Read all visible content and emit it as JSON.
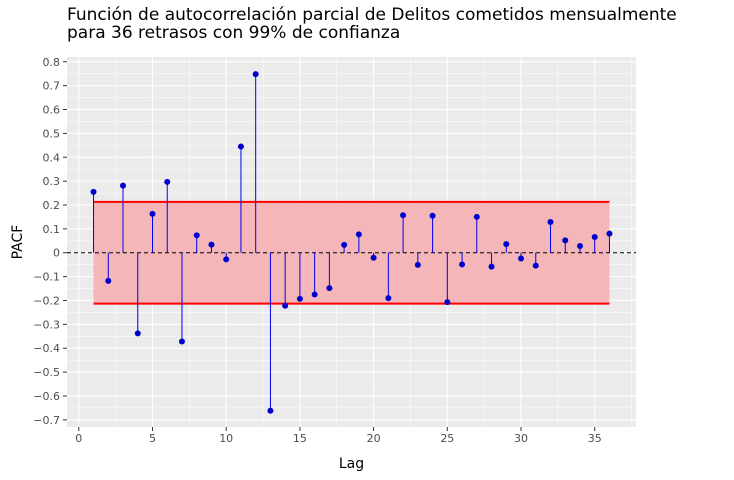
{
  "chart_data": {
    "type": "scatter",
    "title": "Función de autocorrelación parcial de Delitos cometidos mensualmente\npara 36 retrasos con 99% de confianza",
    "xlabel": "Lag",
    "ylabel": "PACF",
    "xlim": [
      -0.8,
      37.8
    ],
    "ylim": [
      -0.73,
      0.82
    ],
    "x_ticks": [
      0,
      5,
      10,
      15,
      20,
      25,
      30,
      35
    ],
    "y_ticks": [
      -0.7,
      -0.6,
      -0.5,
      -0.4,
      -0.3,
      -0.2,
      -0.1,
      0,
      0.1,
      0.2,
      0.3,
      0.4,
      0.5,
      0.6,
      0.7,
      0.8
    ],
    "grid": true,
    "confidence_band": {
      "lower": -0.213,
      "upper": 0.213,
      "x_start": 1,
      "x_end": 36
    },
    "series": [
      {
        "x": [
          1,
          2,
          3,
          4,
          5,
          6,
          7,
          8,
          9,
          10,
          11,
          12,
          13,
          14,
          15,
          16,
          17,
          18,
          19,
          20,
          21,
          22,
          23,
          24,
          25,
          26,
          27,
          28,
          29,
          30,
          31,
          32,
          33,
          34,
          35,
          36
        ],
        "y": [
          0.255,
          -0.118,
          0.281,
          -0.338,
          0.163,
          0.297,
          -0.372,
          0.073,
          0.034,
          -0.028,
          0.445,
          0.748,
          -0.662,
          -0.222,
          -0.193,
          -0.175,
          -0.148,
          0.033,
          0.077,
          -0.021,
          -0.19,
          0.157,
          -0.051,
          0.155,
          -0.207,
          -0.049,
          0.15,
          -0.058,
          0.036,
          -0.024,
          -0.054,
          0.129,
          0.052,
          0.028,
          0.066,
          0.08
        ]
      }
    ],
    "colors": {
      "points": "#0000cc",
      "stems": "#0000ee",
      "band_fill": "#f4b6b8",
      "band_edge": "#ff0000",
      "panel": "#ebebeb",
      "grid": "#ffffff",
      "zero_line": "#000000"
    }
  }
}
